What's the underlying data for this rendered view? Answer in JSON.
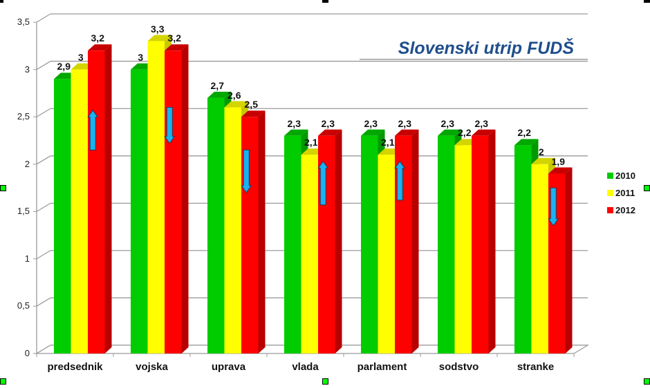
{
  "chart_data": {
    "type": "bar",
    "title": "Slovenski utrip FUDŠ",
    "xlabel": "",
    "ylabel": "",
    "ylim": [
      0,
      3.5
    ],
    "yticks": [
      "0",
      "0,5",
      "1",
      "1,5",
      "2",
      "2,5",
      "3",
      "3,5"
    ],
    "categories": [
      "predsednik",
      "vojska",
      "uprava",
      "vlada",
      "parlament",
      "sodstvo",
      "stranke"
    ],
    "series": [
      {
        "name": "2010",
        "color": "#00cc00",
        "values": [
          2.9,
          3.0,
          2.7,
          2.3,
          2.3,
          2.3,
          2.2
        ]
      },
      {
        "name": "2011",
        "color": "#ffff00",
        "values": [
          3.0,
          3.3,
          2.6,
          2.1,
          2.1,
          2.2,
          2.0
        ]
      },
      {
        "name": "2012",
        "color": "#ff0000",
        "values": [
          3.2,
          3.2,
          2.5,
          2.3,
          2.3,
          2.3,
          1.9
        ]
      }
    ],
    "value_labels": [
      [
        "2,9",
        "3",
        "3,2"
      ],
      [
        "3",
        "3,3",
        "3,2"
      ],
      [
        "2,7",
        "2,6",
        "2,5"
      ],
      [
        "2,3",
        "2,1",
        "2,3"
      ],
      [
        "2,3",
        "2,1",
        "2,3"
      ],
      [
        "2,3",
        "2,2",
        "2,3"
      ],
      [
        "2,2",
        "2",
        "1,9"
      ]
    ],
    "trend_arrows": [
      "up",
      "down",
      "down",
      "up",
      "up",
      "none",
      "down"
    ],
    "arrow_color": "#1ab2f0",
    "grid": true,
    "legend_position": "right",
    "style": "3d-clustered-column"
  },
  "legend": [
    {
      "label": "2010",
      "color": "#00cc00"
    },
    {
      "label": "2011",
      "color": "#ffff00"
    },
    {
      "label": "2012",
      "color": "#ff0000"
    }
  ]
}
